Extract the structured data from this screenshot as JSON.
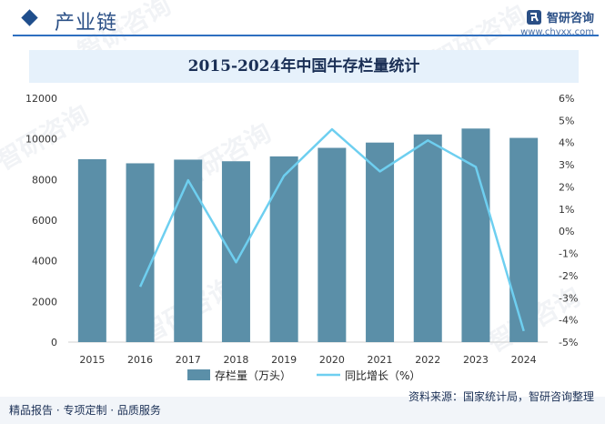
{
  "header": {
    "title": "产业链",
    "logo_text": "智研咨询",
    "logo_url": "www.chyxx.com"
  },
  "watermark_text": "智研咨询",
  "chart_data": {
    "type": "bar+line",
    "title": "2015-2024年中国牛存栏量统计",
    "categories": [
      "2015",
      "2016",
      "2017",
      "2018",
      "2019",
      "2020",
      "2021",
      "2022",
      "2023",
      "2024"
    ],
    "series": [
      {
        "name": "存栏量（万头）",
        "type": "bar",
        "axis": "left",
        "values": [
          9000,
          8800,
          8980,
          8900,
          9140,
          9560,
          9820,
          10220,
          10510,
          10050
        ]
      },
      {
        "name": "同比增长（%）",
        "type": "line",
        "axis": "right",
        "values": [
          null,
          -2.5,
          2.3,
          -1.4,
          2.5,
          4.6,
          2.7,
          4.1,
          2.9,
          -4.5
        ]
      }
    ],
    "left_axis": {
      "ylim": [
        0,
        12000
      ],
      "ticks": [
        "0",
        "2000",
        "4000",
        "6000",
        "8000",
        "10000",
        "12000"
      ]
    },
    "right_axis": {
      "ylim": [
        -5,
        6
      ],
      "ticks": [
        "-5%",
        "-4%",
        "-3%",
        "-2%",
        "-1%",
        "0%",
        "1%",
        "2%",
        "3%",
        "4%",
        "5%",
        "6%"
      ]
    },
    "legend_position": "bottom",
    "colors": {
      "bar": "#5b8fa8",
      "line": "#6ecff0"
    }
  },
  "footer": {
    "left_text": "精品报告 · 专项定制 · 品质服务",
    "source_text": "资料来源：国家统计局，智研咨询整理"
  }
}
